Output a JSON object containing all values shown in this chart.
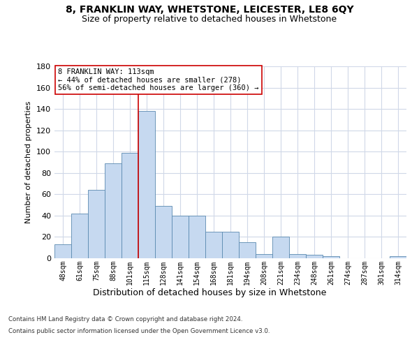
{
  "title1": "8, FRANKLIN WAY, WHETSTONE, LEICESTER, LE8 6QY",
  "title2": "Size of property relative to detached houses in Whetstone",
  "xlabel": "Distribution of detached houses by size in Whetstone",
  "ylabel": "Number of detached properties",
  "categories": [
    "48sqm",
    "61sqm",
    "75sqm",
    "88sqm",
    "101sqm",
    "115sqm",
    "128sqm",
    "141sqm",
    "154sqm",
    "168sqm",
    "181sqm",
    "194sqm",
    "208sqm",
    "221sqm",
    "234sqm",
    "248sqm",
    "261sqm",
    "274sqm",
    "287sqm",
    "301sqm",
    "314sqm"
  ],
  "values": [
    13,
    42,
    64,
    89,
    99,
    138,
    49,
    40,
    40,
    25,
    25,
    15,
    4,
    20,
    4,
    3,
    2,
    0,
    0,
    0,
    2
  ],
  "bar_color": "#c6d9f0",
  "bar_edge_color": "#5a8ab0",
  "highlight_index": 5,
  "annotation_line1": "8 FRANKLIN WAY: 113sqm",
  "annotation_line2": "← 44% of detached houses are smaller (278)",
  "annotation_line3": "56% of semi-detached houses are larger (360) →",
  "annotation_box_color": "#ffffff",
  "annotation_box_edge_color": "#cc0000",
  "annotation_fontsize": 7.5,
  "vline_color": "#cc0000",
  "ylim": [
    0,
    180
  ],
  "yticks": [
    0,
    20,
    40,
    60,
    80,
    100,
    120,
    140,
    160,
    180
  ],
  "grid_color": "#d0d8e8",
  "background_color": "#ffffff",
  "footer_line1": "Contains HM Land Registry data © Crown copyright and database right 2024.",
  "footer_line2": "Contains public sector information licensed under the Open Government Licence v3.0.",
  "title1_fontsize": 10,
  "title2_fontsize": 9,
  "xlabel_fontsize": 9,
  "ylabel_fontsize": 8
}
